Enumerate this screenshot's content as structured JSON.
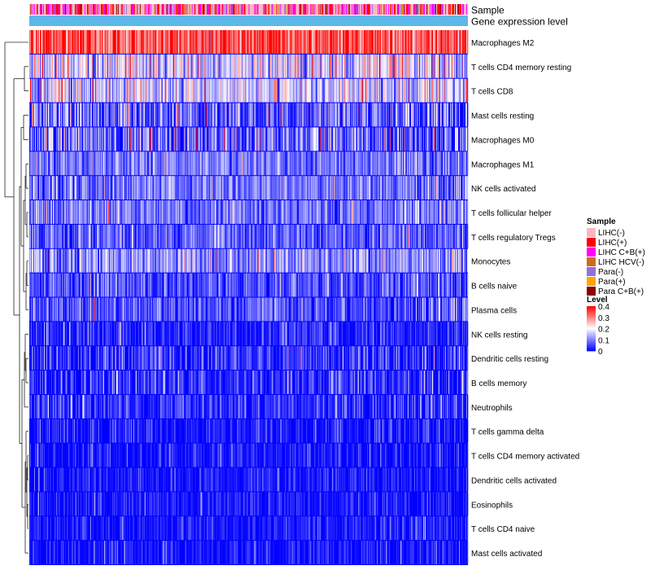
{
  "chart_data": {
    "type": "heatmap",
    "title": "",
    "annotation_tracks": [
      "Sample",
      "Gene expression level"
    ],
    "rows": [
      {
        "label": "Macrophages M2",
        "mean": 0.34,
        "spread": 0.07
      },
      {
        "label": "T cells CD4 memory resting",
        "mean": 0.17,
        "spread": 0.08
      },
      {
        "label": "T cells CD8",
        "mean": 0.16,
        "spread": 0.07
      },
      {
        "label": "Mast cells resting",
        "mean": 0.07,
        "spread": 0.09
      },
      {
        "label": "Macrophages M0",
        "mean": 0.07,
        "spread": 0.09
      },
      {
        "label": "Macrophages M1",
        "mean": 0.09,
        "spread": 0.05
      },
      {
        "label": "NK cells activated",
        "mean": 0.09,
        "spread": 0.05
      },
      {
        "label": "T cells follicular helper",
        "mean": 0.09,
        "spread": 0.05
      },
      {
        "label": "T cells regulatory  Tregs",
        "mean": 0.07,
        "spread": 0.05
      },
      {
        "label": "Monocytes",
        "mean": 0.11,
        "spread": 0.06
      },
      {
        "label": "B cells naive",
        "mean": 0.06,
        "spread": 0.05
      },
      {
        "label": "Plasma cells",
        "mean": 0.06,
        "spread": 0.05
      },
      {
        "label": "NK cells resting",
        "mean": 0.02,
        "spread": 0.05
      },
      {
        "label": "Dendritic cells resting",
        "mean": 0.03,
        "spread": 0.06
      },
      {
        "label": "B cells memory",
        "mean": 0.03,
        "spread": 0.05
      },
      {
        "label": "Neutrophils",
        "mean": 0.03,
        "spread": 0.05
      },
      {
        "label": "T cells gamma delta",
        "mean": 0.01,
        "spread": 0.04
      },
      {
        "label": "T cells CD4 memory activated",
        "mean": 0.01,
        "spread": 0.035
      },
      {
        "label": "Dendritic cells activated",
        "mean": 0.01,
        "spread": 0.035
      },
      {
        "label": "Eosinophils",
        "mean": 0.01,
        "spread": 0.035
      },
      {
        "label": "T cells CD4 naive",
        "mean": 0.01,
        "spread": 0.035
      },
      {
        "label": "Mast cells activated",
        "mean": 0.01,
        "spread": 0.035
      }
    ],
    "sample_legend": {
      "title": "Sample",
      "entries": [
        {
          "label": "LIHC(-)",
          "color": "#FFB6C1"
        },
        {
          "label": "LIHC(+)",
          "color": "#FF0000"
        },
        {
          "label": "LIHC C+B(+)",
          "color": "#FF00FF"
        },
        {
          "label": "LIHC HCV(-)",
          "color": "#D2691E"
        },
        {
          "label": "Para(-)",
          "color": "#9370DB"
        },
        {
          "label": "Para(+)",
          "color": "#FFA500"
        },
        {
          "label": "Para C+B(+)",
          "color": "#8B0000"
        }
      ]
    },
    "sample_mix": [
      0.42,
      0.2,
      0.24,
      0.04,
      0.05,
      0.02,
      0.03
    ],
    "level_legend": {
      "title": "Level",
      "ticks": [
        "0.4",
        "0.3",
        "0.2",
        "0.1",
        "0"
      ],
      "range": [
        0,
        0.4
      ]
    },
    "color_scale": [
      {
        "value": 0.0,
        "color": "#0000FF"
      },
      {
        "value": 0.2,
        "color": "#FFFFFF"
      },
      {
        "value": 0.4,
        "color": "#FF0000"
      }
    ],
    "expression_track_color": "#5BB8E8",
    "n_samples": 540
  }
}
